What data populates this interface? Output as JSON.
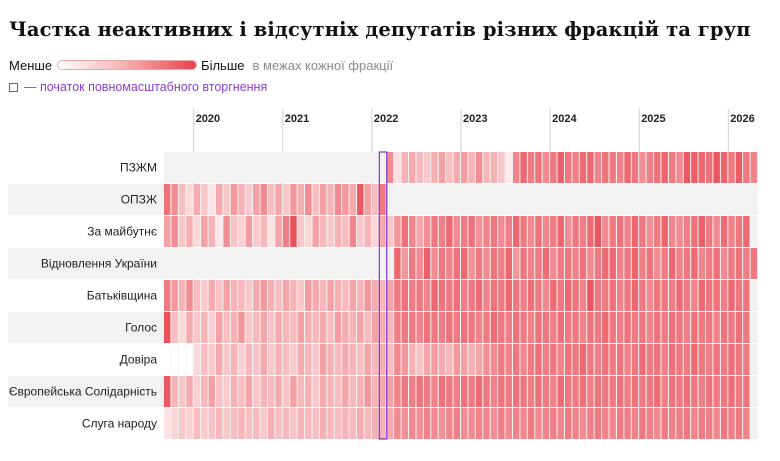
{
  "title": "Частка неактивних і відсутніх депутатів різних фракцій та груп",
  "legend": {
    "low_label": "Менше",
    "high_label": "Більше",
    "note": "в межах кожної фракції",
    "invasion_label": "— початок повномасштабного вторгнення",
    "low_color": "#ffffff",
    "high_color": "#e8434d",
    "absent_color": "#f2f2f2",
    "invasion_color": "#8a3fd0"
  },
  "chart_data": {
    "type": "heatmap",
    "title": "Частка неактивних і відсутніх депутатів різних фракцій та груп",
    "x_unit": "month",
    "x_start": "2019-09",
    "x_end": "2026-04",
    "x_tick_labels": [
      "2020",
      "2021",
      "2022",
      "2023",
      "2024",
      "2025",
      "2026"
    ],
    "invasion_marker": "2022-02",
    "value_scale": "relative within each faction (0 = менше, 1 = більше)",
    "rows": [
      {
        "label": "ПЗЖМ",
        "start": "2022-03",
        "values": [
          0.62,
          0.18,
          0.4,
          0.45,
          0.36,
          0.3,
          0.42,
          0.5,
          0.34,
          0.45,
          0.52,
          0.4,
          0.6,
          0.38,
          0.42,
          0.3,
          0.1,
          0.65,
          0.8,
          0.7,
          0.75,
          0.62,
          0.7,
          0.85,
          0.72,
          0.68,
          0.78,
          0.8,
          0.65,
          0.74,
          0.7,
          0.66,
          0.8,
          0.72,
          0.6,
          0.68,
          0.75,
          0.82,
          0.7,
          0.62,
          0.88,
          0.84,
          0.8,
          0.76,
          0.9,
          0.82,
          0.7,
          0.86,
          0.72,
          0.66
        ]
      },
      {
        "label": "ОПЗЖ",
        "start": "2019-09",
        "end": "2022-02",
        "values": [
          0.75,
          0.6,
          0.35,
          0.2,
          0.45,
          0.3,
          0.15,
          0.45,
          0.3,
          0.55,
          0.4,
          0.28,
          0.5,
          0.62,
          0.35,
          0.48,
          0.3,
          0.55,
          0.42,
          0.6,
          0.35,
          0.5,
          0.4,
          0.62,
          0.55,
          0.45,
          0.88,
          0.5,
          0.35,
          0.7
        ]
      },
      {
        "label": "За майбутнє",
        "start": "2019-09",
        "values": [
          0.5,
          0.62,
          0.3,
          0.42,
          0.2,
          0.5,
          0.4,
          0.12,
          0.6,
          0.32,
          0.25,
          0.52,
          0.28,
          0.38,
          0.15,
          0.48,
          0.68,
          0.92,
          0.3,
          0.22,
          0.5,
          0.38,
          0.3,
          0.42,
          0.35,
          0.65,
          0.28,
          0.4,
          0.22,
          0.45,
          0.3,
          0.55,
          0.75,
          0.65,
          0.48,
          0.6,
          0.72,
          0.68,
          0.8,
          0.62,
          0.7,
          0.75,
          0.58,
          0.66,
          0.72,
          0.62,
          0.68,
          0.8,
          0.7,
          0.62,
          0.75,
          0.65,
          0.7,
          0.82,
          0.6,
          0.72,
          0.68,
          0.78,
          0.9,
          0.62,
          0.7,
          0.75,
          0.66,
          0.8,
          0.72,
          0.6,
          0.7,
          0.82,
          0.64,
          0.62,
          0.68,
          0.75,
          0.85,
          0.7,
          0.62,
          0.78,
          0.66,
          0.72,
          0.8
        ]
      },
      {
        "label": "Відновлення України",
        "start": "2022-04",
        "values": [
          0.8,
          0.55,
          0.7,
          0.62,
          0.85,
          0.6,
          0.72,
          0.66,
          0.75,
          0.8,
          0.58,
          0.7,
          0.62,
          0.74,
          0.68,
          0.8,
          0.55,
          0.72,
          0.66,
          0.7,
          0.78,
          0.62,
          0.7,
          0.72,
          0.66,
          0.75,
          0.62,
          0.7,
          0.78,
          0.8,
          0.66,
          0.72,
          0.82,
          0.68,
          0.75,
          0.62,
          0.7,
          0.8,
          0.66,
          0.72,
          0.78,
          0.64,
          0.7,
          0.76,
          0.62,
          0.7,
          0.74,
          0.68,
          0.72
        ]
      },
      {
        "label": "Батьківщина",
        "start": "2019-09",
        "values": [
          0.7,
          0.55,
          0.4,
          0.62,
          0.35,
          0.28,
          0.45,
          0.32,
          0.5,
          0.4,
          0.38,
          0.3,
          0.45,
          0.55,
          0.42,
          0.35,
          0.48,
          0.4,
          0.3,
          0.52,
          0.45,
          0.38,
          0.5,
          0.42,
          0.36,
          0.48,
          0.4,
          0.55,
          0.44,
          0.38,
          0.5,
          0.7,
          0.75,
          0.68,
          0.72,
          0.66,
          0.8,
          0.74,
          0.7,
          0.76,
          0.68,
          0.72,
          0.78,
          0.66,
          0.74,
          0.7,
          0.8,
          0.72,
          0.68,
          0.76,
          0.7,
          0.64,
          0.78,
          0.72,
          0.8,
          0.74,
          0.66,
          0.9,
          0.72,
          0.7,
          0.76,
          0.66,
          0.72,
          0.8,
          0.7,
          0.62,
          0.74,
          0.72,
          0.68,
          0.78,
          0.7,
          0.66,
          0.8,
          0.72,
          0.76,
          0.68,
          0.8,
          0.72,
          0.74
        ]
      },
      {
        "label": "Голос",
        "start": "2019-09",
        "values": [
          0.92,
          0.35,
          0.2,
          0.45,
          0.3,
          0.4,
          0.25,
          0.5,
          0.35,
          0.42,
          0.55,
          0.3,
          0.38,
          0.48,
          0.32,
          0.45,
          0.4,
          0.36,
          0.5,
          0.42,
          0.38,
          0.46,
          0.35,
          0.52,
          0.44,
          0.4,
          0.48,
          0.36,
          0.5,
          0.42,
          0.38,
          0.68,
          0.72,
          0.7,
          0.66,
          0.75,
          0.72,
          0.68,
          0.74,
          0.7,
          0.76,
          0.72,
          0.66,
          0.7,
          0.78,
          0.72,
          0.68,
          0.75,
          0.7,
          0.66,
          0.74,
          0.72,
          0.68,
          0.76,
          0.7,
          0.72,
          0.66,
          0.74,
          0.7,
          0.78,
          0.72,
          0.68,
          0.75,
          0.7,
          0.72,
          0.66,
          0.74,
          0.7,
          0.76,
          0.72,
          0.68,
          0.75,
          0.7,
          0.72,
          0.66,
          0.74,
          0.7,
          0.76,
          0.72
        ]
      },
      {
        "label": "Довіра",
        "start": "2019-09",
        "values": [
          0.0,
          0.0,
          0.0,
          0.0,
          0.2,
          0.35,
          0.28,
          0.45,
          0.3,
          0.4,
          0.25,
          0.38,
          0.32,
          0.46,
          0.3,
          0.4,
          0.35,
          0.28,
          0.44,
          0.38,
          0.3,
          0.5,
          0.42,
          0.36,
          0.45,
          0.4,
          0.33,
          0.48,
          0.38,
          0.42,
          0.35,
          0.62,
          0.55,
          0.4,
          0.32,
          0.48,
          0.52,
          0.45,
          0.38,
          0.55,
          0.5,
          0.42,
          0.48,
          0.6,
          0.62,
          0.7,
          0.66,
          0.72,
          0.64,
          0.7,
          0.76,
          0.68,
          0.72,
          0.66,
          0.74,
          0.7,
          0.8,
          0.72,
          0.68,
          0.76,
          0.7,
          0.74,
          0.66,
          0.72,
          0.78,
          0.7,
          0.74,
          0.68,
          0.76,
          0.72,
          0.7,
          0.78,
          0.72,
          0.68,
          0.74,
          0.7,
          0.76,
          0.72,
          0.7
        ]
      },
      {
        "label": "Європейська Солідарність",
        "start": "2019-09",
        "values": [
          0.88,
          0.4,
          0.3,
          0.45,
          0.25,
          0.38,
          0.5,
          0.32,
          0.28,
          0.42,
          0.35,
          0.48,
          0.3,
          0.4,
          0.36,
          0.44,
          0.32,
          0.5,
          0.38,
          0.42,
          0.3,
          0.46,
          0.4,
          0.35,
          0.48,
          0.38,
          0.42,
          0.55,
          0.4,
          0.45,
          0.5,
          0.66,
          0.72,
          0.68,
          0.74,
          0.7,
          0.66,
          0.76,
          0.72,
          0.68,
          0.74,
          0.7,
          0.78,
          0.72,
          0.66,
          0.74,
          0.7,
          0.76,
          0.72,
          0.68,
          0.74,
          0.7,
          0.66,
          0.78,
          0.72,
          0.7,
          0.76,
          0.68,
          0.74,
          0.72,
          0.7,
          0.76,
          0.68,
          0.74,
          0.7,
          0.72,
          0.78,
          0.68,
          0.74,
          0.7,
          0.76,
          0.72,
          0.68,
          0.74,
          0.7,
          0.72,
          0.76,
          0.7,
          0.74
        ]
      },
      {
        "label": "Слуга народу",
        "start": "2019-09",
        "values": [
          0.15,
          0.22,
          0.3,
          0.25,
          0.35,
          0.28,
          0.32,
          0.38,
          0.3,
          0.35,
          0.4,
          0.33,
          0.36,
          0.3,
          0.42,
          0.35,
          0.38,
          0.32,
          0.4,
          0.36,
          0.34,
          0.42,
          0.38,
          0.35,
          0.4,
          0.37,
          0.44,
          0.38,
          0.42,
          0.4,
          0.45,
          0.62,
          0.58,
          0.64,
          0.6,
          0.66,
          0.62,
          0.58,
          0.64,
          0.68,
          0.6,
          0.62,
          0.66,
          0.64,
          0.6,
          0.68,
          0.62,
          0.66,
          0.64,
          0.7,
          0.62,
          0.66,
          0.68,
          0.64,
          0.7,
          0.66,
          0.62,
          0.68,
          0.72,
          0.66,
          0.64,
          0.7,
          0.68,
          0.66,
          0.72,
          0.68,
          0.64,
          0.7,
          0.66,
          0.68,
          0.72,
          0.66,
          0.7,
          0.68,
          0.64,
          0.72,
          0.68,
          0.7,
          0.66
        ]
      }
    ]
  }
}
